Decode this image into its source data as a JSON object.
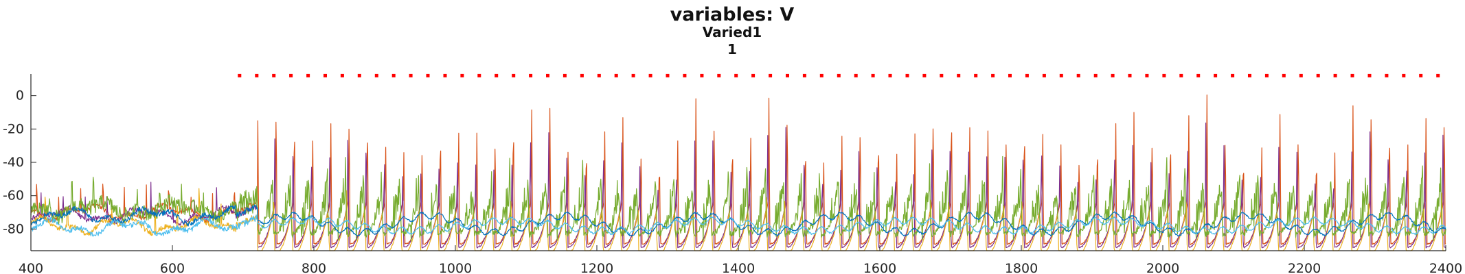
{
  "chart_data": {
    "type": "line",
    "title": "variables: V",
    "subtitle": "Varied1",
    "subsubtitle": "1",
    "xlabel": "",
    "ylabel": "",
    "xlim": [
      400,
      2400
    ],
    "ylim": [
      -93,
      13
    ],
    "x_ticks": [
      400,
      600,
      800,
      1000,
      1200,
      1400,
      1600,
      1800,
      2000,
      2200,
      2400
    ],
    "x_tick_labels": [
      "400",
      "600",
      "800",
      "1000",
      "1200",
      "1400",
      "1600",
      "1800",
      "2000",
      "2200",
      "2400"
    ],
    "y_ticks": [
      0,
      -20,
      -40,
      -60,
      -80
    ],
    "y_tick_labels": [
      "0",
      "-20",
      "-40",
      "-60",
      "-80"
    ],
    "grid": false,
    "legend": "none",
    "series": [
      {
        "color": "#D95319",
        "style": "spiking",
        "baseline": -86,
        "spike_peak_mean": -15,
        "pre_spike_level": -70
      },
      {
        "color": "#7E2F8E",
        "style": "spiking",
        "baseline": -88,
        "spike_peak_mean": -30,
        "pre_spike_level": -72
      },
      {
        "color": "#EDB120",
        "style": "spiking",
        "baseline": -92,
        "spike_peak_mean": -75,
        "pre_spike_level": -78
      },
      {
        "color": "#77AC30",
        "style": "bursting",
        "baseline": -80,
        "spike_peak_mean": -50,
        "pre_spike_level": -68
      },
      {
        "color": "#0072BD",
        "style": "oscillating",
        "baseline": -77,
        "pre_spike_level": -72
      },
      {
        "color": "#4DBEEE",
        "style": "oscillating",
        "baseline": -78,
        "pre_spike_level": -79
      }
    ],
    "spike_onset": 720,
    "spike_period": 25.8,
    "event_markers": {
      "color": "#FF0000",
      "y": 12,
      "x_start": 695,
      "x_end": 2390,
      "spacing": 24.2
    }
  }
}
